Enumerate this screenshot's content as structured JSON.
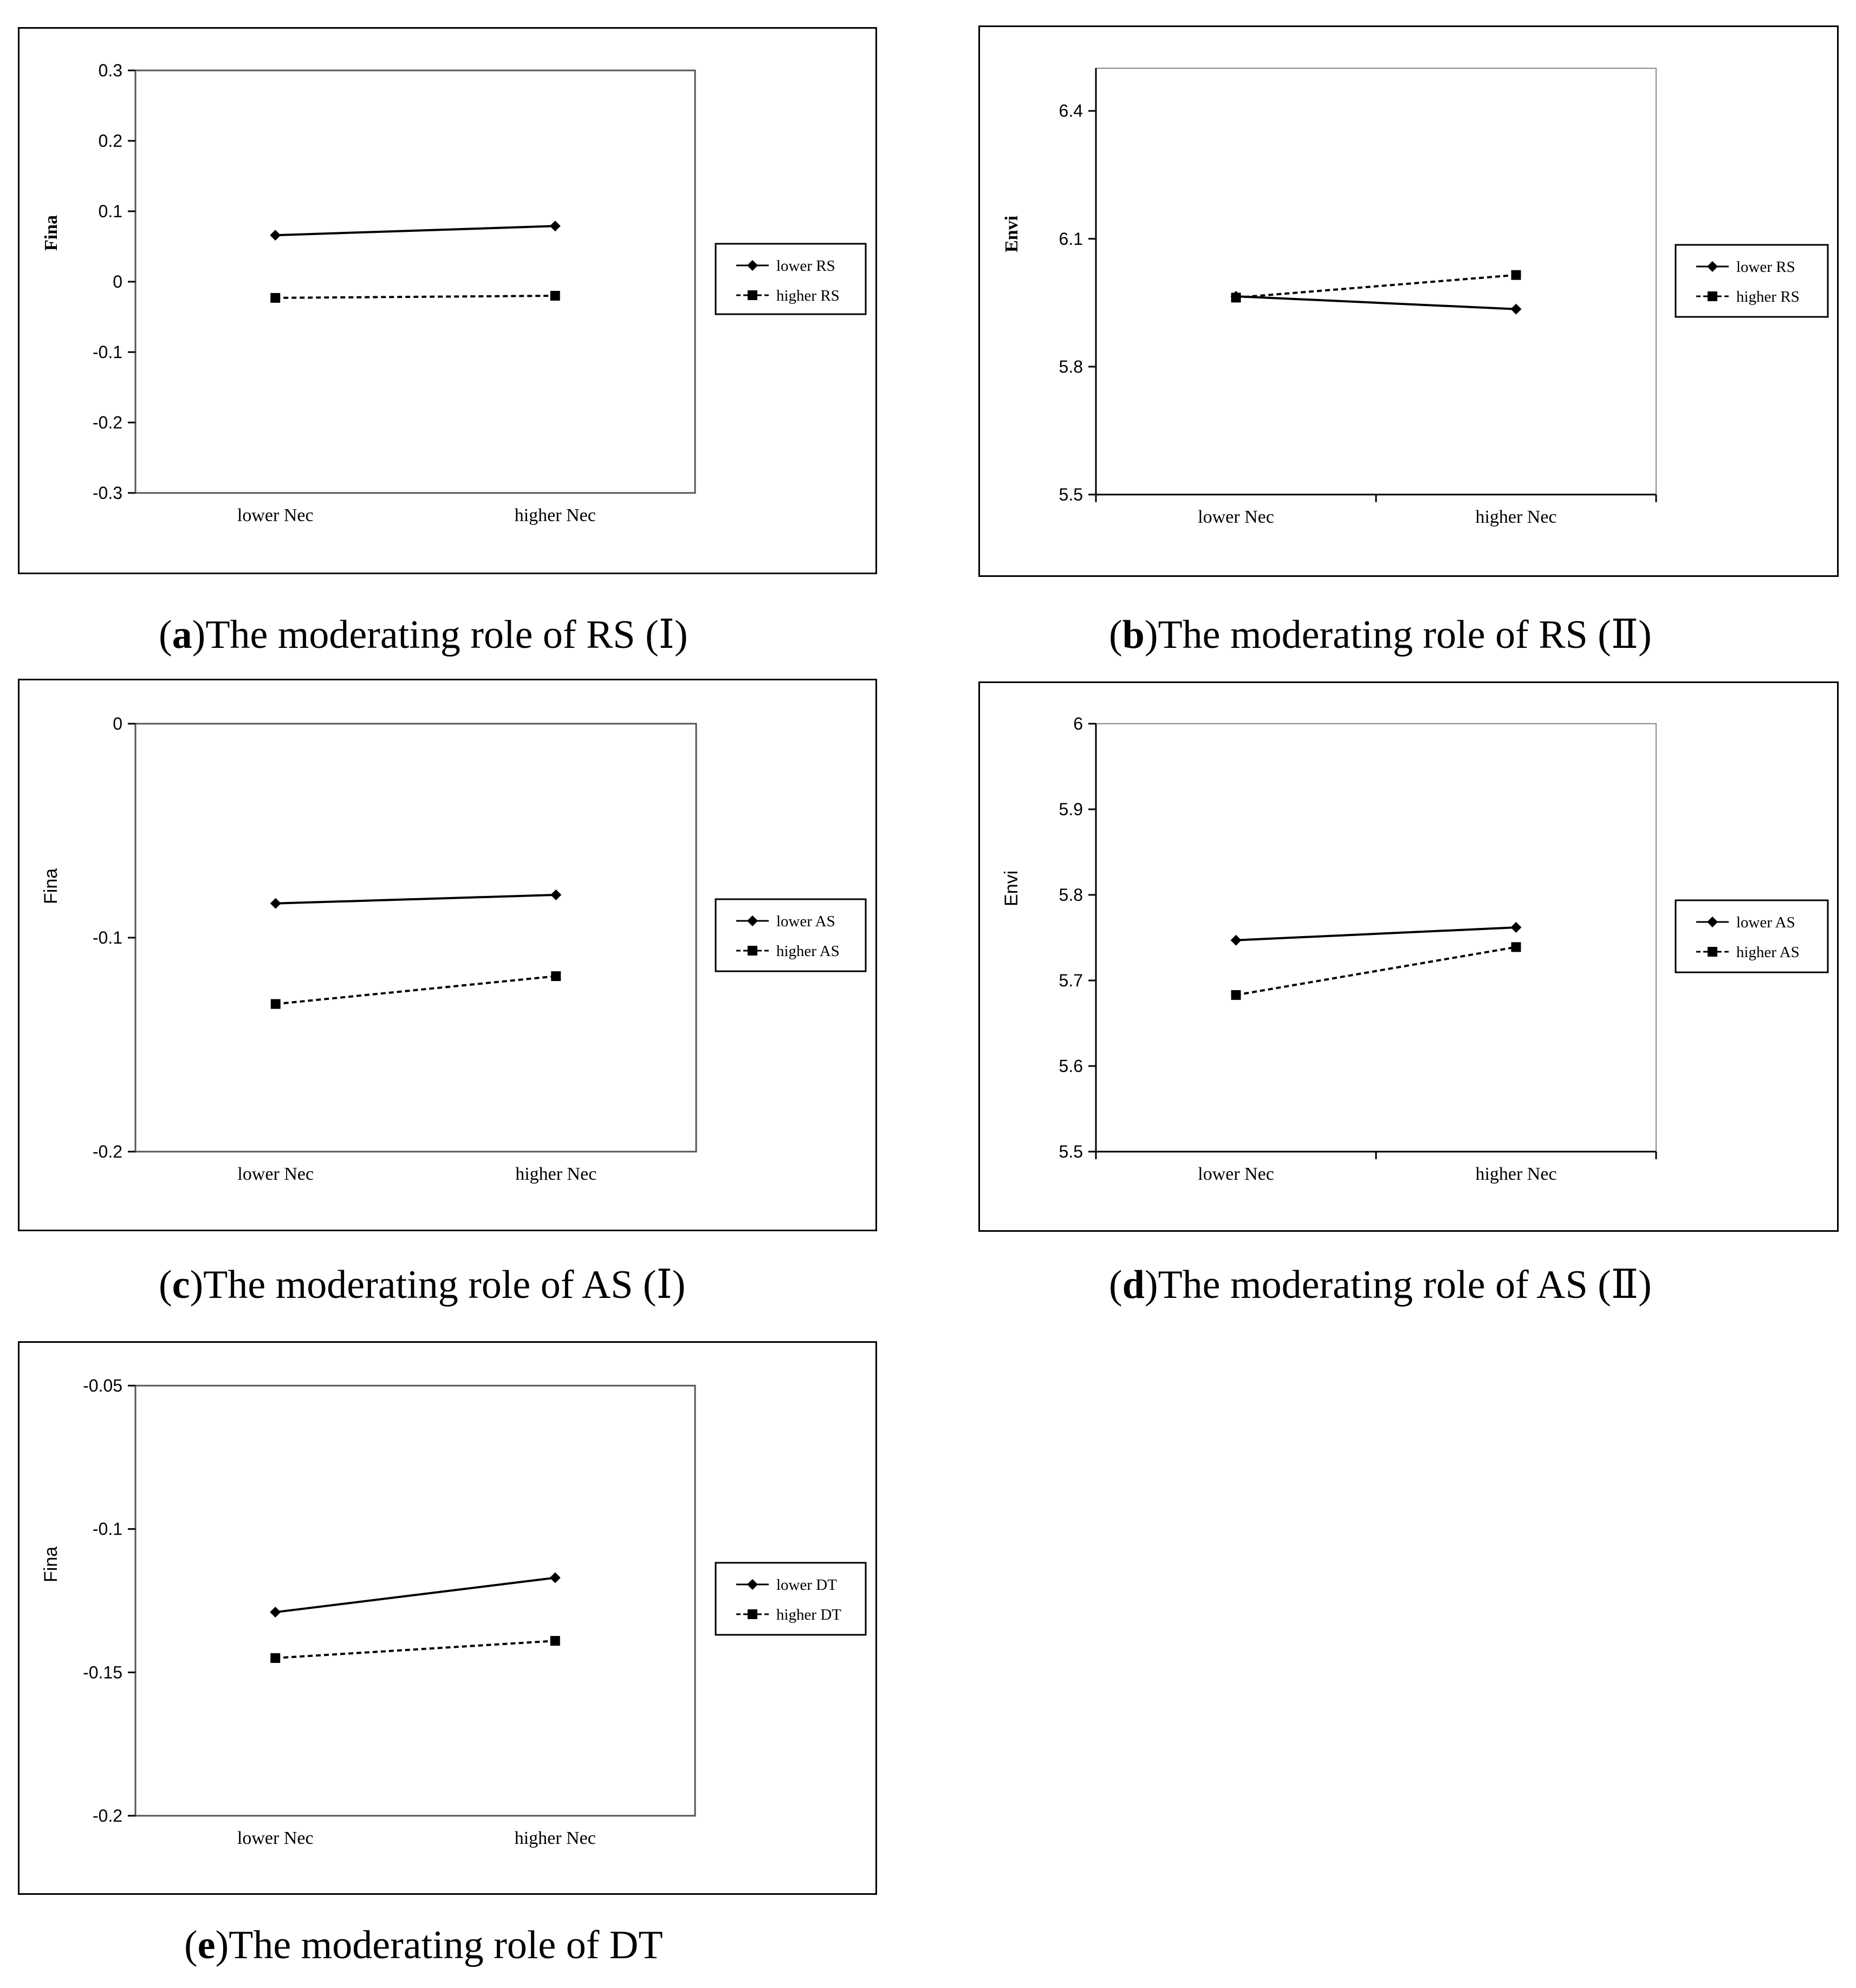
{
  "chart_data": [
    {
      "id": "a",
      "type": "line",
      "caption": {
        "letter": "a",
        "text": "The moderating role of RS (Ⅰ)"
      },
      "ylabel": "Fina",
      "ylabel_serif": true,
      "categories": [
        "lower Nec",
        "higher Nec"
      ],
      "ylim": [
        -0.3,
        0.3
      ],
      "yticks": [
        "0.3",
        "0.2",
        "0.1",
        "0",
        "-0.1",
        "-0.2",
        "-0.3"
      ],
      "x_ticks": false,
      "series": [
        {
          "name": "lower RS",
          "values": [
            0.066,
            0.079
          ],
          "style": "solid",
          "marker": "diamond"
        },
        {
          "name": "higher RS",
          "values": [
            -0.023,
            -0.02
          ],
          "style": "dashed",
          "marker": "square"
        }
      ],
      "legend": "right"
    },
    {
      "id": "b",
      "type": "line",
      "caption": {
        "letter": "b",
        "text": "The moderating role of RS (Ⅱ)"
      },
      "ylabel": "Envi",
      "ylabel_serif": true,
      "categories": [
        "lower Nec",
        "higher Nec"
      ],
      "ylim": [
        5.5,
        6.5
      ],
      "yticks": [
        "6.4",
        "6.1",
        "5.8",
        "5.5"
      ],
      "ytick_values": [
        6.4,
        6.1,
        5.8,
        5.5
      ],
      "x_ticks": true,
      "series": [
        {
          "name": "lower RS",
          "values": [
            5.965,
            5.935
          ],
          "style": "solid",
          "marker": "diamond"
        },
        {
          "name": "higher RS",
          "values": [
            5.962,
            6.015
          ],
          "style": "dashed",
          "marker": "square"
        }
      ],
      "legend": "right"
    },
    {
      "id": "c",
      "type": "line",
      "caption": {
        "letter": "c",
        "text": "The moderating role of AS (Ⅰ)"
      },
      "ylabel": "Fina",
      "ylabel_serif": false,
      "categories": [
        "lower Nec",
        "higher Nec"
      ],
      "ylim": [
        -0.2,
        0
      ],
      "yticks": [
        "0",
        "-0.1",
        "-0.2"
      ],
      "x_ticks": false,
      "series": [
        {
          "name": "lower AS",
          "values": [
            -0.084,
            -0.08
          ],
          "style": "solid",
          "marker": "diamond"
        },
        {
          "name": "higher AS",
          "values": [
            -0.131,
            -0.118
          ],
          "style": "dashed",
          "marker": "square"
        }
      ],
      "legend": "right"
    },
    {
      "id": "d",
      "type": "line",
      "caption": {
        "letter": "d",
        "text": "The moderating role of AS (Ⅱ)"
      },
      "ylabel": "Envi",
      "ylabel_serif": false,
      "categories": [
        "lower Nec",
        "higher Nec"
      ],
      "ylim": [
        5.5,
        6.0
      ],
      "yticks": [
        "6",
        "5.9",
        "5.8",
        "5.7",
        "5.6",
        "5.5"
      ],
      "x_ticks": true,
      "series": [
        {
          "name": "lower AS",
          "values": [
            5.747,
            5.762
          ],
          "style": "solid",
          "marker": "diamond"
        },
        {
          "name": "higher AS",
          "values": [
            5.683,
            5.739
          ],
          "style": "dashed",
          "marker": "square"
        }
      ],
      "legend": "right"
    },
    {
      "id": "e",
      "type": "line",
      "caption": {
        "letter": "e",
        "text": "The moderating role of DT"
      },
      "ylabel": "Fina",
      "ylabel_serif": false,
      "categories": [
        "lower Nec",
        "higher Nec"
      ],
      "ylim": [
        -0.2,
        -0.05
      ],
      "yticks": [
        "-0.05",
        "-0.1",
        "-0.15",
        "-0.2"
      ],
      "x_ticks": false,
      "series": [
        {
          "name": "lower DT",
          "values": [
            -0.129,
            -0.117
          ],
          "style": "solid",
          "marker": "diamond"
        },
        {
          "name": "higher DT",
          "values": [
            -0.145,
            -0.139
          ],
          "style": "dashed",
          "marker": "square"
        }
      ],
      "legend": "right"
    }
  ]
}
